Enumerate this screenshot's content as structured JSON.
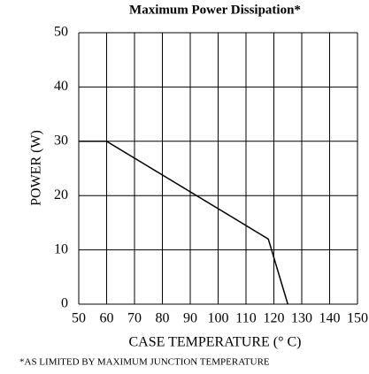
{
  "chart_data": {
    "type": "line",
    "title": "Maximum Power Dissipation*",
    "xlabel": "CASE TEMPERATURE (° C)",
    "ylabel": "POWER (W)",
    "footnote": "*AS LIMITED BY MAXIMUM JUNCTION TEMPERATURE",
    "x": [
      50,
      60,
      118,
      125
    ],
    "values": [
      30,
      30,
      12,
      0
    ],
    "color": "#000000",
    "xlim": [
      50,
      150
    ],
    "xticks": [
      50,
      60,
      70,
      80,
      90,
      100,
      110,
      120,
      130,
      140,
      150
    ],
    "ylim": [
      0,
      50
    ],
    "yticks": [
      0,
      10,
      20,
      30,
      40,
      50
    ],
    "grid": true
  }
}
